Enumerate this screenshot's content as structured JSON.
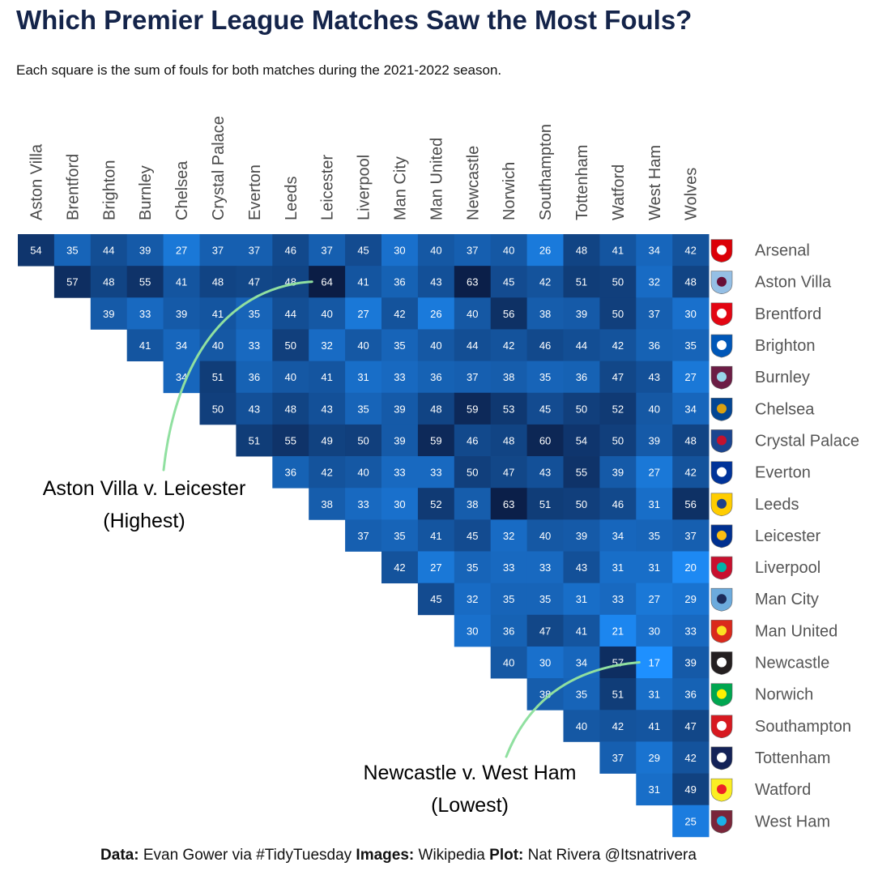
{
  "title": "Which Premier League Matches Saw the Most Fouls?",
  "subtitle": "Each square is the sum of fouls for both matches during the 2021-2022 season.",
  "caption": {
    "data_label": "Data:",
    "data_text": " Evan Gower via #TidyTuesday ",
    "images_label": "Images:",
    "images_text": " Wikipedia ",
    "plot_label": "Plot:",
    "plot_text": " Nat Rivera @Itsnatrivera"
  },
  "chart_data": {
    "type": "heatmap",
    "columns": [
      "Aston Villa",
      "Brentford",
      "Brighton",
      "Burnley",
      "Chelsea",
      "Crystal Palace",
      "Everton",
      "Leeds",
      "Leicester",
      "Liverpool",
      "Man City",
      "Man United",
      "Newcastle",
      "Norwich",
      "Southampton",
      "Tottenham",
      "Watford",
      "West Ham",
      "Wolves"
    ],
    "rows": [
      "Arsenal",
      "Aston Villa",
      "Brentford",
      "Brighton",
      "Burnley",
      "Chelsea",
      "Crystal Palace",
      "Everton",
      "Leeds",
      "Leicester",
      "Liverpool",
      "Man City",
      "Man United",
      "Newcastle",
      "Norwich",
      "Southampton",
      "Tottenham",
      "Watford",
      "West Ham"
    ],
    "values": [
      [
        54,
        35,
        44,
        39,
        27,
        37,
        37,
        46,
        37,
        45,
        30,
        40,
        37,
        40,
        26,
        48,
        41,
        34,
        42
      ],
      [
        null,
        57,
        48,
        55,
        41,
        48,
        47,
        48,
        64,
        41,
        36,
        43,
        63,
        45,
        42,
        51,
        50,
        32,
        48
      ],
      [
        null,
        null,
        39,
        33,
        39,
        41,
        35,
        44,
        40,
        27,
        42,
        26,
        40,
        56,
        38,
        39,
        50,
        37,
        30
      ],
      [
        null,
        null,
        null,
        41,
        34,
        40,
        33,
        50,
        32,
        40,
        35,
        40,
        44,
        42,
        46,
        44,
        42,
        36,
        35
      ],
      [
        null,
        null,
        null,
        null,
        34,
        51,
        36,
        40,
        41,
        31,
        33,
        36,
        37,
        38,
        35,
        36,
        47,
        43,
        27
      ],
      [
        null,
        null,
        null,
        null,
        null,
        50,
        43,
        48,
        43,
        35,
        39,
        48,
        59,
        53,
        45,
        50,
        52,
        40,
        34
      ],
      [
        null,
        null,
        null,
        null,
        null,
        null,
        51,
        55,
        49,
        50,
        39,
        59,
        46,
        48,
        60,
        54,
        50,
        39,
        48
      ],
      [
        null,
        null,
        null,
        null,
        null,
        null,
        null,
        36,
        42,
        40,
        33,
        33,
        50,
        47,
        43,
        55,
        39,
        27,
        42
      ],
      [
        null,
        null,
        null,
        null,
        null,
        null,
        null,
        null,
        38,
        33,
        30,
        52,
        38,
        63,
        51,
        50,
        46,
        31,
        56
      ],
      [
        null,
        null,
        null,
        null,
        null,
        null,
        null,
        null,
        null,
        37,
        35,
        41,
        45,
        32,
        40,
        39,
        34,
        35,
        37
      ],
      [
        null,
        null,
        null,
        null,
        null,
        null,
        null,
        null,
        null,
        null,
        42,
        27,
        35,
        33,
        33,
        43,
        31,
        31,
        20
      ],
      [
        null,
        null,
        null,
        null,
        null,
        null,
        null,
        null,
        null,
        null,
        null,
        45,
        32,
        35,
        35,
        31,
        33,
        27,
        29
      ],
      [
        null,
        null,
        null,
        null,
        null,
        null,
        null,
        null,
        null,
        null,
        null,
        null,
        30,
        36,
        47,
        41,
        21,
        30,
        33
      ],
      [
        null,
        null,
        null,
        null,
        null,
        null,
        null,
        null,
        null,
        null,
        null,
        null,
        null,
        40,
        30,
        34,
        57,
        17,
        39
      ],
      [
        null,
        null,
        null,
        null,
        null,
        null,
        null,
        null,
        null,
        null,
        null,
        null,
        null,
        null,
        38,
        35,
        51,
        31,
        36
      ],
      [
        null,
        null,
        null,
        null,
        null,
        null,
        null,
        null,
        null,
        null,
        null,
        null,
        null,
        null,
        null,
        40,
        42,
        41,
        47
      ],
      [
        null,
        null,
        null,
        null,
        null,
        null,
        null,
        null,
        null,
        null,
        null,
        null,
        null,
        null,
        null,
        null,
        37,
        29,
        42
      ],
      [
        null,
        null,
        null,
        null,
        null,
        null,
        null,
        null,
        null,
        null,
        null,
        null,
        null,
        null,
        null,
        null,
        null,
        31,
        49
      ],
      [
        null,
        null,
        null,
        null,
        null,
        null,
        null,
        null,
        null,
        null,
        null,
        null,
        null,
        null,
        null,
        null,
        null,
        null,
        25
      ]
    ],
    "color_low": "#1e90ff",
    "color_high": "#0b1d45",
    "annotations": [
      {
        "text": [
          "Aston Villa v. Leicester",
          "(Highest)"
        ],
        "row": 1,
        "col": 8,
        "color": "#90e0a0"
      },
      {
        "text": [
          "Newcastle v. West Ham",
          "(Lowest)"
        ],
        "row": 13,
        "col": 17,
        "color": "#90e0a0"
      }
    ],
    "row_badges": [
      {
        "team": "Arsenal",
        "icon": "arsenal-crest-icon",
        "colors": [
          "#db0007",
          "#ffffff"
        ]
      },
      {
        "team": "Aston Villa",
        "icon": "aston-villa-crest-icon",
        "colors": [
          "#95bfe5",
          "#670e36"
        ]
      },
      {
        "team": "Brentford",
        "icon": "brentford-crest-icon",
        "colors": [
          "#e30613",
          "#ffffff"
        ]
      },
      {
        "team": "Brighton",
        "icon": "brighton-crest-icon",
        "colors": [
          "#0057b8",
          "#ffffff"
        ]
      },
      {
        "team": "Burnley",
        "icon": "burnley-crest-icon",
        "colors": [
          "#6c1d45",
          "#99d6ea"
        ]
      },
      {
        "team": "Chelsea",
        "icon": "chelsea-crest-icon",
        "colors": [
          "#034694",
          "#dba111"
        ]
      },
      {
        "team": "Crystal Palace",
        "icon": "crystal-palace-crest-icon",
        "colors": [
          "#1b458f",
          "#c4122e"
        ]
      },
      {
        "team": "Everton",
        "icon": "everton-crest-icon",
        "colors": [
          "#003399",
          "#ffffff"
        ]
      },
      {
        "team": "Leeds",
        "icon": "leeds-crest-icon",
        "colors": [
          "#ffcd00",
          "#1d428a"
        ]
      },
      {
        "team": "Leicester",
        "icon": "leicester-crest-icon",
        "colors": [
          "#003090",
          "#fdbe11"
        ]
      },
      {
        "team": "Liverpool",
        "icon": "liverpool-crest-icon",
        "colors": [
          "#c8102e",
          "#00b2a9"
        ]
      },
      {
        "team": "Man City",
        "icon": "man-city-crest-icon",
        "colors": [
          "#6cabdd",
          "#1c2c5b"
        ]
      },
      {
        "team": "Man United",
        "icon": "man-united-crest-icon",
        "colors": [
          "#da291c",
          "#fbe122"
        ]
      },
      {
        "team": "Newcastle",
        "icon": "newcastle-crest-icon",
        "colors": [
          "#241f20",
          "#ffffff"
        ]
      },
      {
        "team": "Norwich",
        "icon": "norwich-crest-icon",
        "colors": [
          "#00a650",
          "#fff200"
        ]
      },
      {
        "team": "Southampton",
        "icon": "southampton-crest-icon",
        "colors": [
          "#d71920",
          "#ffffff"
        ]
      },
      {
        "team": "Tottenham",
        "icon": "tottenham-crest-icon",
        "colors": [
          "#132257",
          "#ffffff"
        ]
      },
      {
        "team": "Watford",
        "icon": "watford-crest-icon",
        "colors": [
          "#fbee23",
          "#ed2127"
        ]
      },
      {
        "team": "West Ham",
        "icon": "west-ham-crest-icon",
        "colors": [
          "#7a263a",
          "#1bb1e7"
        ]
      }
    ]
  }
}
